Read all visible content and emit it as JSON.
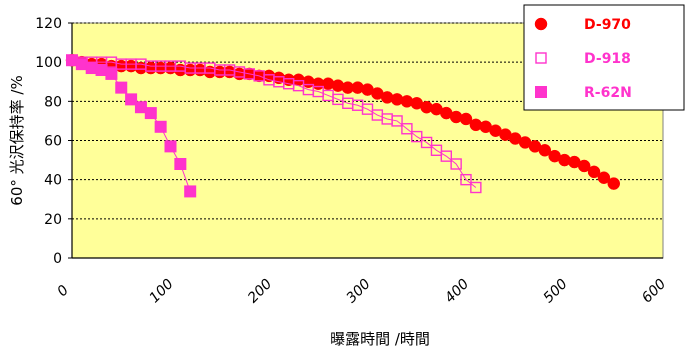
{
  "chart_data": {
    "type": "scatter",
    "title": "",
    "xlabel": "曝露時間 /時間",
    "ylabel": "60° 光沢保持率 /%",
    "xlim": [
      0,
      600
    ],
    "ylim": [
      0,
      120
    ],
    "x_ticks": [
      "0",
      "100",
      "200",
      "300",
      "400",
      "500",
      "600"
    ],
    "y_ticks": [
      "0",
      "20",
      "40",
      "60",
      "80",
      "100",
      "120"
    ],
    "grid": "horizontal dotted",
    "plot_background": "#ffff99",
    "legend_position": "top-right",
    "series": [
      {
        "name": "D-970",
        "color": "#ff0000",
        "marker": "filled-circle",
        "points": [
          [
            0,
            101
          ],
          [
            10,
            100
          ],
          [
            20,
            99
          ],
          [
            30,
            99
          ],
          [
            40,
            98
          ],
          [
            50,
            98
          ],
          [
            60,
            98
          ],
          [
            70,
            97
          ],
          [
            80,
            97
          ],
          [
            90,
            97
          ],
          [
            100,
            97
          ],
          [
            110,
            96
          ],
          [
            120,
            96
          ],
          [
            130,
            96
          ],
          [
            140,
            95
          ],
          [
            150,
            95
          ],
          [
            160,
            95
          ],
          [
            170,
            94
          ],
          [
            180,
            94
          ],
          [
            190,
            93
          ],
          [
            200,
            93
          ],
          [
            210,
            92
          ],
          [
            220,
            91
          ],
          [
            230,
            91
          ],
          [
            240,
            90
          ],
          [
            250,
            89
          ],
          [
            260,
            89
          ],
          [
            270,
            88
          ],
          [
            280,
            87
          ],
          [
            290,
            87
          ],
          [
            300,
            86
          ],
          [
            310,
            84
          ],
          [
            320,
            82
          ],
          [
            330,
            81
          ],
          [
            340,
            80
          ],
          [
            350,
            79
          ],
          [
            360,
            77
          ],
          [
            370,
            76
          ],
          [
            380,
            74
          ],
          [
            390,
            72
          ],
          [
            400,
            71
          ],
          [
            410,
            68
          ],
          [
            420,
            67
          ],
          [
            430,
            65
          ],
          [
            440,
            63
          ],
          [
            450,
            61
          ],
          [
            460,
            59
          ],
          [
            470,
            57
          ],
          [
            480,
            55
          ],
          [
            490,
            52
          ],
          [
            500,
            50
          ],
          [
            510,
            49
          ],
          [
            520,
            47
          ],
          [
            530,
            44
          ],
          [
            540,
            41
          ],
          [
            550,
            38
          ]
        ]
      },
      {
        "name": "D-918",
        "color": "#ff33cc",
        "marker": "open-square",
        "points": [
          [
            0,
            101
          ],
          [
            10,
            100
          ],
          [
            20,
            100
          ],
          [
            30,
            100
          ],
          [
            40,
            100
          ],
          [
            50,
            99
          ],
          [
            60,
            99
          ],
          [
            70,
            99
          ],
          [
            80,
            98
          ],
          [
            90,
            98
          ],
          [
            100,
            98
          ],
          [
            110,
            98
          ],
          [
            120,
            97
          ],
          [
            130,
            97
          ],
          [
            140,
            97
          ],
          [
            150,
            96
          ],
          [
            160,
            96
          ],
          [
            170,
            95
          ],
          [
            180,
            94
          ],
          [
            190,
            93
          ],
          [
            200,
            91
          ],
          [
            210,
            90
          ],
          [
            220,
            89
          ],
          [
            230,
            88
          ],
          [
            240,
            86
          ],
          [
            250,
            85
          ],
          [
            260,
            83
          ],
          [
            270,
            81
          ],
          [
            280,
            79
          ],
          [
            290,
            78
          ],
          [
            300,
            76
          ],
          [
            310,
            73
          ],
          [
            320,
            71
          ],
          [
            330,
            70
          ],
          [
            340,
            66
          ],
          [
            350,
            62
          ],
          [
            360,
            59
          ],
          [
            370,
            55
          ],
          [
            380,
            52
          ],
          [
            390,
            48
          ],
          [
            400,
            40
          ],
          [
            410,
            36
          ]
        ]
      },
      {
        "name": "R-62N",
        "color": "#ff33cc",
        "marker": "filled-square",
        "points": [
          [
            0,
            101
          ],
          [
            10,
            99
          ],
          [
            20,
            97
          ],
          [
            30,
            96
          ],
          [
            40,
            94
          ],
          [
            50,
            87
          ],
          [
            60,
            81
          ],
          [
            70,
            77
          ],
          [
            80,
            74
          ],
          [
            90,
            67
          ],
          [
            100,
            57
          ],
          [
            110,
            48
          ],
          [
            120,
            34
          ]
        ]
      }
    ]
  }
}
